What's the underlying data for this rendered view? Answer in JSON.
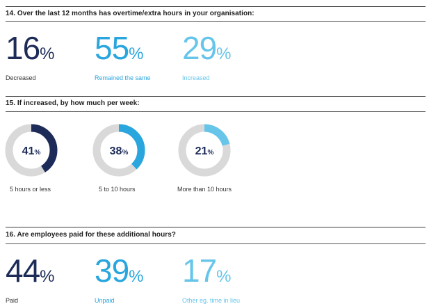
{
  "sections": [
    {
      "title": "14. Over the last 12 months has overtime/extra hours in your organisation:",
      "stats": [
        {
          "value": "16",
          "unit": "%",
          "label": "Decreased"
        },
        {
          "value": "55",
          "unit": "%",
          "label": "Remained the same"
        },
        {
          "value": "29",
          "unit": "%",
          "label": "Increased"
        }
      ]
    },
    {
      "title": "15. If increased, by how much per week:"
    },
    {
      "title": "16. Are employees paid for these additional hours?",
      "stats": [
        {
          "value": "44",
          "unit": "%",
          "label": "Paid"
        },
        {
          "value": "39",
          "unit": "%",
          "label": "Unpaid"
        },
        {
          "value": "17",
          "unit": "%",
          "label": "Other eg. time in lieu"
        }
      ]
    }
  ],
  "chart_data": {
    "type": "pie",
    "categories": [
      "5 hours or less",
      "5 to 10 hours",
      "More than 10 hours"
    ],
    "values": [
      41,
      38,
      21
    ],
    "value_labels": [
      "41",
      "38",
      "21"
    ],
    "unit": "%",
    "colors": {
      "fill": [
        "#1c2b57",
        "#2aa6de",
        "#67c5ea"
      ],
      "track": "#d9d9d9"
    }
  }
}
